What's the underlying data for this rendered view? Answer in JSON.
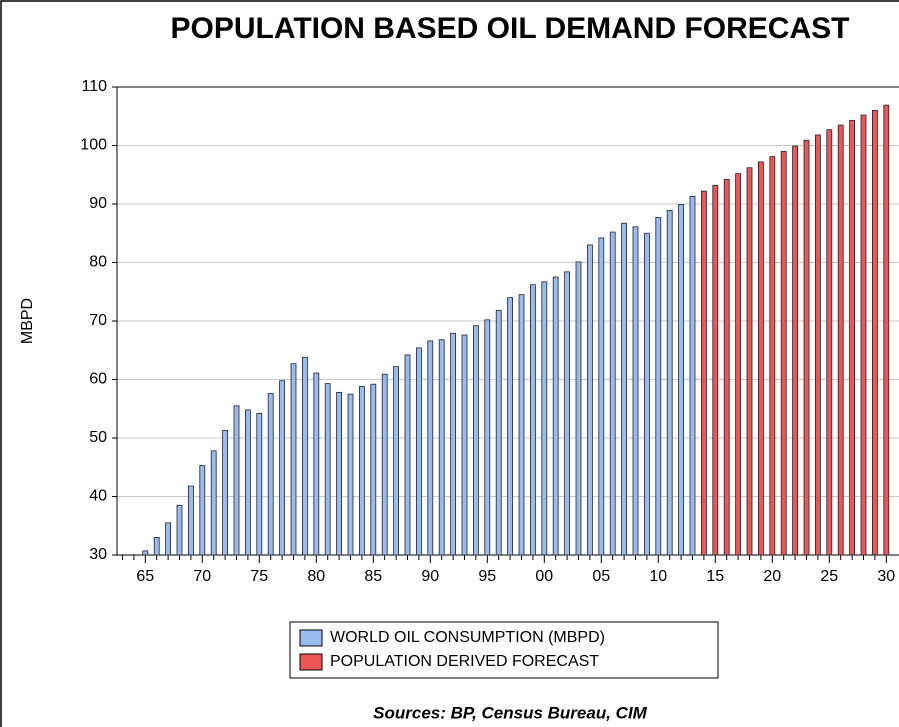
{
  "chart_data": {
    "type": "bar",
    "title": "POPULATION BASED OIL DEMAND FORECAST",
    "y_label": "MBPD",
    "source": "Sources:  BP, Census Bureau, CIM",
    "categories": [
      null,
      null,
      "65",
      null,
      null,
      null,
      null,
      "70",
      null,
      null,
      null,
      null,
      "75",
      null,
      null,
      null,
      null,
      "80",
      null,
      null,
      null,
      null,
      "85",
      null,
      null,
      null,
      null,
      "90",
      null,
      null,
      null,
      null,
      "95",
      null,
      null,
      null,
      null,
      "00",
      null,
      null,
      null,
      null,
      "05",
      null,
      null,
      null,
      null,
      "10",
      null,
      null,
      null,
      null,
      "15",
      null,
      null,
      null,
      null,
      "20",
      null,
      null,
      null,
      null,
      "25",
      null,
      null,
      null,
      null,
      "30"
    ],
    "series": [
      {
        "name": "WORLD OIL CONSUMPTION (MBPD)",
        "color": "#99bbee",
        "values": [
          null,
          null,
          30.7,
          33,
          35.5,
          38.5,
          41.8,
          45.3,
          47.8,
          51.3,
          55.5,
          54.8,
          54.2,
          57.6,
          59.8,
          62.7,
          63.8,
          61.1,
          59.3,
          57.8,
          57.5,
          58.8,
          59.2,
          60.9,
          62.2,
          64.2,
          65.4,
          66.6,
          66.8,
          67.9,
          67.6,
          69.2,
          70.2,
          71.8,
          74.0,
          74.5,
          76.2,
          76.7,
          77.5,
          78.4,
          80.1,
          83.0,
          84.2,
          85.2,
          86.7,
          86.1,
          85.0,
          87.7,
          88.9,
          89.9,
          91.3,
          null,
          null,
          null,
          null,
          null,
          null,
          null,
          null,
          null,
          null,
          null,
          null,
          null,
          null,
          null,
          null,
          null
        ]
      },
      {
        "name": "POPULATION DERIVED FORECAST",
        "color": "#ee5555",
        "values": [
          null,
          null,
          null,
          null,
          null,
          null,
          null,
          null,
          null,
          null,
          null,
          null,
          null,
          null,
          null,
          null,
          null,
          null,
          null,
          null,
          null,
          null,
          null,
          null,
          null,
          null,
          null,
          null,
          null,
          null,
          null,
          null,
          null,
          null,
          null,
          null,
          null,
          null,
          null,
          null,
          null,
          null,
          null,
          null,
          null,
          null,
          null,
          null,
          null,
          null,
          null,
          92.2,
          93.2,
          94.2,
          95.2,
          96.2,
          97.2,
          98.1,
          99.0,
          99.9,
          100.9,
          101.8,
          102.7,
          103.5,
          104.3,
          105.2,
          106.0,
          106.9
        ]
      }
    ],
    "ylim": [
      30,
      110
    ],
    "yticks": [
      30,
      40,
      50,
      60,
      70,
      80,
      90,
      100,
      110
    ],
    "grid": true
  }
}
